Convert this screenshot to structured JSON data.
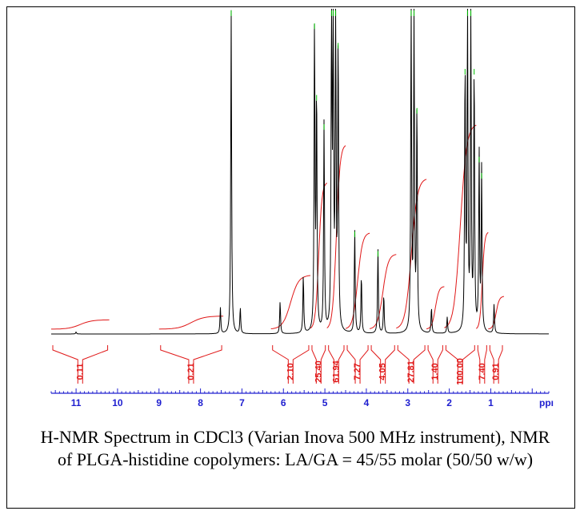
{
  "caption": "H-NMR Spectrum in CDCl3 (Varian Inova 500 MHz instrument), NMR of PLGA-histidine copolymers: LA/GA = 45/55 molar (50/50 w/w)",
  "chart_data": {
    "type": "line",
    "xlabel": "ppm",
    "x_axis_label_visible": "ppı",
    "xlim": [
      11.6,
      -0.4
    ],
    "x_reversed": true,
    "xticks": [
      11,
      10,
      9,
      8,
      7,
      6,
      5,
      4,
      3,
      2,
      1
    ],
    "grid": false,
    "peaks": [
      {
        "ppm": 11.0,
        "height": 0.006
      },
      {
        "ppm": 7.52,
        "height": 0.08
      },
      {
        "ppm": 7.26,
        "height": 1.0
      },
      {
        "ppm": 7.04,
        "height": 0.08
      },
      {
        "ppm": 6.08,
        "height": 0.1
      },
      {
        "ppm": 5.52,
        "height": 0.18
      },
      {
        "ppm": 5.25,
        "height": 0.96
      },
      {
        "ppm": 5.2,
        "height": 0.74
      },
      {
        "ppm": 5.02,
        "height": 0.65
      },
      {
        "ppm": 4.84,
        "height": 1.0
      },
      {
        "ppm": 4.8,
        "height": 1.0
      },
      {
        "ppm": 4.74,
        "height": 1.0
      },
      {
        "ppm": 4.68,
        "height": 0.9
      },
      {
        "ppm": 4.28,
        "height": 0.32
      },
      {
        "ppm": 4.12,
        "height": 0.18
      },
      {
        "ppm": 3.72,
        "height": 0.26
      },
      {
        "ppm": 3.58,
        "height": 0.12
      },
      {
        "ppm": 2.92,
        "height": 1.0
      },
      {
        "ppm": 2.85,
        "height": 1.0
      },
      {
        "ppm": 2.78,
        "height": 0.7
      },
      {
        "ppm": 2.43,
        "height": 0.08
      },
      {
        "ppm": 2.05,
        "height": 0.05
      },
      {
        "ppm": 1.62,
        "height": 0.82
      },
      {
        "ppm": 1.56,
        "height": 1.0
      },
      {
        "ppm": 1.48,
        "height": 1.0
      },
      {
        "ppm": 1.4,
        "height": 0.82
      },
      {
        "ppm": 1.28,
        "height": 0.55
      },
      {
        "ppm": 1.22,
        "height": 0.5
      },
      {
        "ppm": 0.92,
        "height": 0.09
      }
    ],
    "integrals": [
      {
        "from": 11.6,
        "to": 10.2,
        "value": "0.11"
      },
      {
        "from": 9.0,
        "to": 7.45,
        "value": "0.21"
      },
      {
        "from": 6.3,
        "to": 5.35,
        "value": "2.10"
      },
      {
        "from": 5.35,
        "to": 4.95,
        "value": "25.40"
      },
      {
        "from": 4.95,
        "to": 4.5,
        "value": "61.94"
      },
      {
        "from": 4.5,
        "to": 3.92,
        "value": "7.27"
      },
      {
        "from": 3.92,
        "to": 3.28,
        "value": "4.05"
      },
      {
        "from": 3.28,
        "to": 2.55,
        "value": "27.81"
      },
      {
        "from": 2.55,
        "to": 2.12,
        "value": "1.40"
      },
      {
        "from": 2.12,
        "to": 1.35,
        "value": "100.00"
      },
      {
        "from": 1.35,
        "to": 1.06,
        "value": "7.40"
      },
      {
        "from": 1.06,
        "to": 0.68,
        "value": "0.91"
      }
    ],
    "colors": {
      "trace": "#000000",
      "integral": "#e01818",
      "peak_marker": "#00c000",
      "axis": "#2020d0"
    }
  }
}
